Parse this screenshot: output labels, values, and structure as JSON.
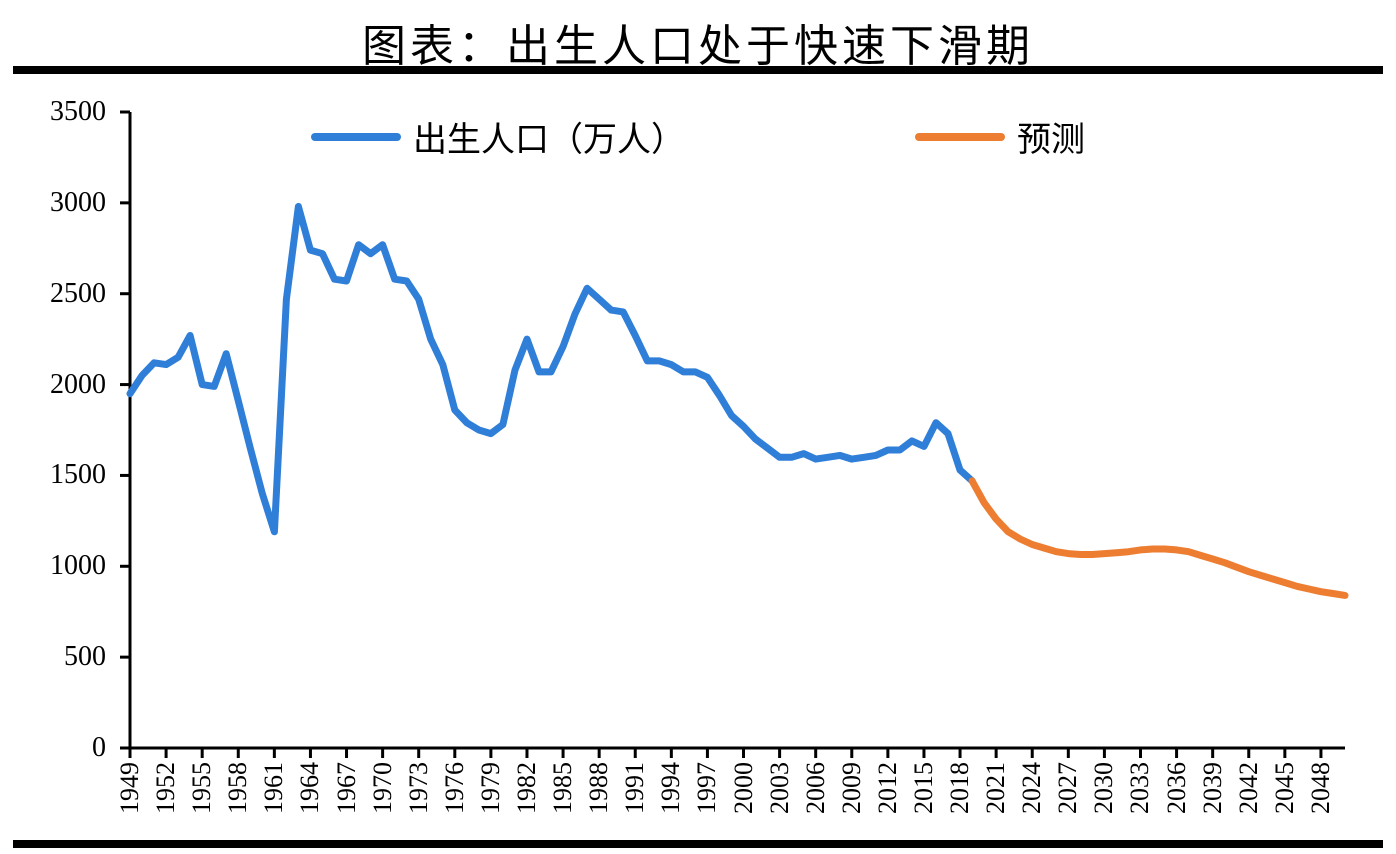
{
  "chart": {
    "type": "line",
    "title": "图表：出生人口处于快速下滑期",
    "background_color": "#ffffff",
    "rule_color": "#000000",
    "axis_color": "#000000",
    "title_fontsize": 44,
    "label_fontsize": 28,
    "xtick_fontsize": 26,
    "legend_fontsize": 34,
    "ylim": [
      0,
      3500
    ],
    "ytick_step": 500,
    "xlim": [
      1949,
      2050
    ],
    "xtick_step": 3,
    "xtick_rotation": -90,
    "line_width": 7,
    "series": [
      {
        "name": "出生人口（万人）",
        "color": "#2f7ed8",
        "data": [
          {
            "x": 1949,
            "y": 1950
          },
          {
            "x": 1950,
            "y": 2050
          },
          {
            "x": 1951,
            "y": 2120
          },
          {
            "x": 1952,
            "y": 2110
          },
          {
            "x": 1953,
            "y": 2150
          },
          {
            "x": 1954,
            "y": 2270
          },
          {
            "x": 1955,
            "y": 2000
          },
          {
            "x": 1956,
            "y": 1990
          },
          {
            "x": 1957,
            "y": 2170
          },
          {
            "x": 1958,
            "y": 1910
          },
          {
            "x": 1959,
            "y": 1650
          },
          {
            "x": 1960,
            "y": 1400
          },
          {
            "x": 1961,
            "y": 1190
          },
          {
            "x": 1962,
            "y": 2470
          },
          {
            "x": 1963,
            "y": 2980
          },
          {
            "x": 1964,
            "y": 2740
          },
          {
            "x": 1965,
            "y": 2720
          },
          {
            "x": 1966,
            "y": 2580
          },
          {
            "x": 1967,
            "y": 2570
          },
          {
            "x": 1968,
            "y": 2770
          },
          {
            "x": 1969,
            "y": 2720
          },
          {
            "x": 1970,
            "y": 2770
          },
          {
            "x": 1971,
            "y": 2580
          },
          {
            "x": 1972,
            "y": 2570
          },
          {
            "x": 1973,
            "y": 2470
          },
          {
            "x": 1974,
            "y": 2250
          },
          {
            "x": 1975,
            "y": 2110
          },
          {
            "x": 1976,
            "y": 1860
          },
          {
            "x": 1977,
            "y": 1790
          },
          {
            "x": 1978,
            "y": 1750
          },
          {
            "x": 1979,
            "y": 1730
          },
          {
            "x": 1980,
            "y": 1780
          },
          {
            "x": 1981,
            "y": 2080
          },
          {
            "x": 1982,
            "y": 2250
          },
          {
            "x": 1983,
            "y": 2070
          },
          {
            "x": 1984,
            "y": 2070
          },
          {
            "x": 1985,
            "y": 2210
          },
          {
            "x": 1986,
            "y": 2390
          },
          {
            "x": 1987,
            "y": 2530
          },
          {
            "x": 1988,
            "y": 2470
          },
          {
            "x": 1989,
            "y": 2410
          },
          {
            "x": 1990,
            "y": 2400
          },
          {
            "x": 1991,
            "y": 2270
          },
          {
            "x": 1992,
            "y": 2130
          },
          {
            "x": 1993,
            "y": 2130
          },
          {
            "x": 1994,
            "y": 2110
          },
          {
            "x": 1995,
            "y": 2070
          },
          {
            "x": 1996,
            "y": 2070
          },
          {
            "x": 1997,
            "y": 2040
          },
          {
            "x": 1998,
            "y": 1940
          },
          {
            "x": 1999,
            "y": 1830
          },
          {
            "x": 2000,
            "y": 1770
          },
          {
            "x": 2001,
            "y": 1700
          },
          {
            "x": 2002,
            "y": 1650
          },
          {
            "x": 2003,
            "y": 1600
          },
          {
            "x": 2004,
            "y": 1600
          },
          {
            "x": 2005,
            "y": 1620
          },
          {
            "x": 2006,
            "y": 1590
          },
          {
            "x": 2007,
            "y": 1600
          },
          {
            "x": 2008,
            "y": 1610
          },
          {
            "x": 2009,
            "y": 1590
          },
          {
            "x": 2010,
            "y": 1600
          },
          {
            "x": 2011,
            "y": 1610
          },
          {
            "x": 2012,
            "y": 1640
          },
          {
            "x": 2013,
            "y": 1640
          },
          {
            "x": 2014,
            "y": 1690
          },
          {
            "x": 2015,
            "y": 1660
          },
          {
            "x": 2016,
            "y": 1790
          },
          {
            "x": 2017,
            "y": 1730
          },
          {
            "x": 2018,
            "y": 1530
          },
          {
            "x": 2019,
            "y": 1470
          }
        ]
      },
      {
        "name": "预测",
        "color": "#ed7d31",
        "data": [
          {
            "x": 2019,
            "y": 1470
          },
          {
            "x": 2020,
            "y": 1350
          },
          {
            "x": 2021,
            "y": 1260
          },
          {
            "x": 2022,
            "y": 1190
          },
          {
            "x": 2023,
            "y": 1150
          },
          {
            "x": 2024,
            "y": 1120
          },
          {
            "x": 2025,
            "y": 1100
          },
          {
            "x": 2026,
            "y": 1080
          },
          {
            "x": 2027,
            "y": 1070
          },
          {
            "x": 2028,
            "y": 1065
          },
          {
            "x": 2029,
            "y": 1065
          },
          {
            "x": 2030,
            "y": 1070
          },
          {
            "x": 2031,
            "y": 1075
          },
          {
            "x": 2032,
            "y": 1080
          },
          {
            "x": 2033,
            "y": 1090
          },
          {
            "x": 2034,
            "y": 1095
          },
          {
            "x": 2035,
            "y": 1095
          },
          {
            "x": 2036,
            "y": 1090
          },
          {
            "x": 2037,
            "y": 1080
          },
          {
            "x": 2038,
            "y": 1060
          },
          {
            "x": 2039,
            "y": 1040
          },
          {
            "x": 2040,
            "y": 1020
          },
          {
            "x": 2041,
            "y": 995
          },
          {
            "x": 2042,
            "y": 970
          },
          {
            "x": 2043,
            "y": 950
          },
          {
            "x": 2044,
            "y": 930
          },
          {
            "x": 2045,
            "y": 910
          },
          {
            "x": 2046,
            "y": 890
          },
          {
            "x": 2047,
            "y": 875
          },
          {
            "x": 2048,
            "y": 860
          },
          {
            "x": 2049,
            "y": 850
          },
          {
            "x": 2050,
            "y": 840
          }
        ]
      }
    ]
  }
}
